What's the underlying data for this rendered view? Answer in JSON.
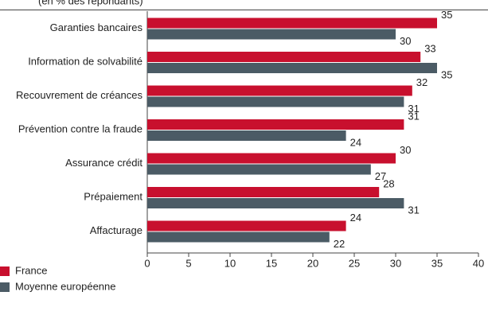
{
  "chart_data": {
    "type": "bar",
    "orientation": "horizontal",
    "subtitle": "(en % des répondants)",
    "categories": [
      "Garanties bancaires",
      "Information de solvabilité",
      "Recouvrement de créances",
      "Prévention contre la fraude",
      "Assurance crédit",
      "Prépaiement",
      "Affacturage"
    ],
    "series": [
      {
        "name": "France",
        "color": "#c8102e",
        "values": [
          35,
          33,
          32,
          31,
          30,
          28,
          24
        ]
      },
      {
        "name": "Moyenne européenne",
        "color": "#4b5b65",
        "values": [
          30,
          35,
          31,
          24,
          27,
          31,
          22
        ]
      }
    ],
    "xlim": [
      0,
      40
    ],
    "xticks": [
      0,
      5,
      10,
      15,
      20,
      25,
      30,
      35,
      40
    ],
    "grid": false
  }
}
